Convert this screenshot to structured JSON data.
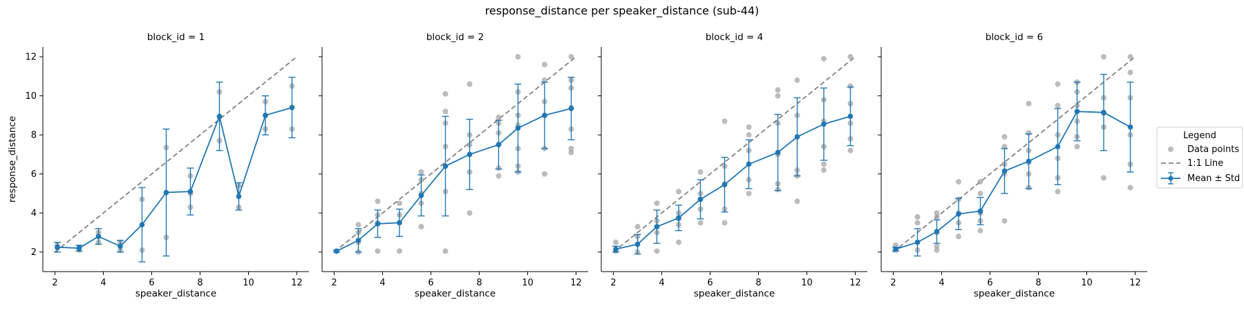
{
  "figure": {
    "title": "response_distance per speaker_distance (sub-44)"
  },
  "legend": {
    "title": "Legend",
    "entries": [
      {
        "label": "Data points",
        "marker": "gray-dot"
      },
      {
        "label": "1:1 Line",
        "marker": "dashed-line"
      },
      {
        "label": "Mean ± Std",
        "marker": "errorbar-line"
      }
    ]
  },
  "colors": {
    "mean": "#1f77b4",
    "points": "#a0a0a0",
    "diagonal": "#808080"
  },
  "chart_data": [
    {
      "type": "scatter",
      "title": "block_id = 1",
      "xlabel": "speaker_distance",
      "ylabel": "response_distance",
      "xlim": [
        1.5,
        12.5
      ],
      "ylim": [
        1.0,
        12.5
      ],
      "xticks": [
        2,
        4,
        6,
        8,
        10,
        12
      ],
      "yticks": [
        2,
        4,
        6,
        8,
        10,
        12
      ],
      "mean": [
        {
          "x": 2.1,
          "y": 2.25,
          "sd": 0.25
        },
        {
          "x": 3.0,
          "y": 2.2,
          "sd": 0.15
        },
        {
          "x": 3.8,
          "y": 2.8,
          "sd": 0.4
        },
        {
          "x": 4.7,
          "y": 2.3,
          "sd": 0.3
        },
        {
          "x": 5.6,
          "y": 3.4,
          "sd": 1.9
        },
        {
          "x": 6.6,
          "y": 5.05,
          "sd": 3.25
        },
        {
          "x": 7.6,
          "y": 5.1,
          "sd": 1.2
        },
        {
          "x": 8.8,
          "y": 8.95,
          "sd": 1.75
        },
        {
          "x": 9.6,
          "y": 4.85,
          "sd": 0.7
        },
        {
          "x": 10.7,
          "y": 9.0,
          "sd": 1.0
        },
        {
          "x": 11.8,
          "y": 9.4,
          "sd": 1.55
        }
      ],
      "points": [
        [
          2.1,
          2.2
        ],
        [
          2.1,
          2.35
        ],
        [
          3.0,
          2.1
        ],
        [
          3.0,
          2.25
        ],
        [
          3.8,
          2.5
        ],
        [
          3.8,
          3.0
        ],
        [
          3.8,
          2.8
        ],
        [
          4.7,
          2.1
        ],
        [
          4.7,
          2.5
        ],
        [
          5.6,
          2.1
        ],
        [
          5.6,
          4.7
        ],
        [
          6.6,
          2.75
        ],
        [
          6.6,
          7.35
        ],
        [
          7.6,
          4.3
        ],
        [
          7.6,
          5.9
        ],
        [
          7.6,
          5.0
        ],
        [
          8.8,
          7.7
        ],
        [
          8.8,
          10.2
        ],
        [
          8.8,
          8.9
        ],
        [
          9.6,
          4.3
        ],
        [
          9.6,
          5.4
        ],
        [
          10.7,
          8.3
        ],
        [
          10.7,
          9.7
        ],
        [
          10.7,
          9.0
        ],
        [
          11.8,
          8.3
        ],
        [
          11.8,
          10.5
        ],
        [
          11.8,
          9.4
        ]
      ]
    },
    {
      "type": "scatter",
      "title": "block_id = 2",
      "xlabel": "speaker_distance",
      "ylabel": "",
      "xlim": [
        1.5,
        12.5
      ],
      "ylim": [
        1.0,
        12.5
      ],
      "xticks": [
        2,
        4,
        6,
        8,
        10,
        12
      ],
      "yticks": [
        2,
        4,
        6,
        8,
        10,
        12
      ],
      "mean": [
        {
          "x": 2.1,
          "y": 2.05,
          "sd": 0.05
        },
        {
          "x": 3.0,
          "y": 2.6,
          "sd": 0.6
        },
        {
          "x": 3.8,
          "y": 3.45,
          "sd": 0.7
        },
        {
          "x": 4.7,
          "y": 3.5,
          "sd": 0.7
        },
        {
          "x": 5.6,
          "y": 4.9,
          "sd": 1.05
        },
        {
          "x": 6.6,
          "y": 6.4,
          "sd": 2.55
        },
        {
          "x": 7.6,
          "y": 7.0,
          "sd": 1.8
        },
        {
          "x": 8.8,
          "y": 7.5,
          "sd": 1.25
        },
        {
          "x": 9.6,
          "y": 8.35,
          "sd": 2.25
        },
        {
          "x": 10.7,
          "y": 9.0,
          "sd": 1.7
        },
        {
          "x": 11.8,
          "y": 9.35,
          "sd": 1.6
        }
      ],
      "points": [
        [
          2.1,
          2.05
        ],
        [
          3.0,
          2.0
        ],
        [
          3.0,
          2.5
        ],
        [
          3.0,
          3.4
        ],
        [
          3.0,
          3.0
        ],
        [
          3.8,
          2.05
        ],
        [
          3.8,
          3.5
        ],
        [
          3.8,
          4.6
        ],
        [
          3.8,
          3.9
        ],
        [
          4.7,
          2.05
        ],
        [
          4.7,
          3.5
        ],
        [
          4.7,
          4.5
        ],
        [
          4.7,
          3.9
        ],
        [
          5.6,
          3.3
        ],
        [
          5.6,
          4.5
        ],
        [
          5.6,
          6.1
        ],
        [
          5.6,
          5.0
        ],
        [
          5.6,
          5.7
        ],
        [
          6.6,
          2.05
        ],
        [
          6.6,
          5.1
        ],
        [
          6.6,
          6.4
        ],
        [
          6.6,
          8.6
        ],
        [
          6.6,
          10.1
        ],
        [
          6.6,
          9.2
        ],
        [
          6.6,
          7.4
        ],
        [
          7.6,
          4.0
        ],
        [
          7.6,
          6.1
        ],
        [
          7.6,
          7.0
        ],
        [
          7.6,
          8.0
        ],
        [
          7.6,
          10.6
        ],
        [
          7.6,
          7.5
        ],
        [
          8.8,
          5.9
        ],
        [
          8.8,
          6.3
        ],
        [
          8.8,
          7.5
        ],
        [
          8.8,
          8.6
        ],
        [
          8.8,
          8.9
        ],
        [
          8.8,
          8.1
        ],
        [
          9.6,
          6.1
        ],
        [
          9.6,
          6.4
        ],
        [
          9.6,
          7.3
        ],
        [
          9.6,
          8.5
        ],
        [
          9.6,
          10.2
        ],
        [
          9.6,
          12.0
        ],
        [
          9.6,
          9.0
        ],
        [
          10.7,
          6.0
        ],
        [
          10.7,
          7.3
        ],
        [
          10.7,
          9.0
        ],
        [
          10.7,
          9.7
        ],
        [
          10.7,
          10.8
        ],
        [
          10.7,
          11.6
        ],
        [
          11.8,
          7.1
        ],
        [
          11.8,
          7.3
        ],
        [
          11.8,
          8.3
        ],
        [
          11.8,
          9.4
        ],
        [
          11.8,
          10.4
        ],
        [
          11.8,
          10.8
        ],
        [
          11.8,
          12.0
        ]
      ]
    },
    {
      "type": "scatter",
      "title": "block_id = 4",
      "xlabel": "speaker_distance",
      "ylabel": "",
      "xlim": [
        1.5,
        12.5
      ],
      "ylim": [
        1.0,
        12.5
      ],
      "xticks": [
        2,
        4,
        6,
        8,
        10,
        12
      ],
      "yticks": [
        2,
        4,
        6,
        8,
        10,
        12
      ],
      "mean": [
        {
          "x": 2.1,
          "y": 2.15,
          "sd": 0.15
        },
        {
          "x": 3.0,
          "y": 2.4,
          "sd": 0.5
        },
        {
          "x": 3.8,
          "y": 3.3,
          "sd": 0.85
        },
        {
          "x": 4.7,
          "y": 3.75,
          "sd": 0.65
        },
        {
          "x": 5.6,
          "y": 4.7,
          "sd": 1.0
        },
        {
          "x": 6.6,
          "y": 5.45,
          "sd": 1.4
        },
        {
          "x": 7.6,
          "y": 6.5,
          "sd": 1.25
        },
        {
          "x": 8.8,
          "y": 7.1,
          "sd": 1.95
        },
        {
          "x": 9.6,
          "y": 7.9,
          "sd": 2.0
        },
        {
          "x": 10.7,
          "y": 8.55,
          "sd": 1.85
        },
        {
          "x": 11.8,
          "y": 8.95,
          "sd": 1.5
        }
      ],
      "points": [
        [
          2.1,
          2.05
        ],
        [
          2.1,
          2.5
        ],
        [
          3.0,
          2.0
        ],
        [
          3.0,
          2.4
        ],
        [
          3.0,
          3.3
        ],
        [
          3.0,
          2.8
        ],
        [
          3.8,
          2.05
        ],
        [
          3.8,
          3.0
        ],
        [
          3.8,
          3.6
        ],
        [
          3.8,
          4.5
        ],
        [
          3.8,
          3.3
        ],
        [
          4.7,
          2.5
        ],
        [
          4.7,
          3.4
        ],
        [
          4.7,
          4.0
        ],
        [
          4.7,
          5.1
        ],
        [
          4.7,
          3.7
        ],
        [
          5.6,
          3.5
        ],
        [
          5.6,
          4.2
        ],
        [
          5.6,
          5.0
        ],
        [
          5.6,
          6.1
        ],
        [
          5.6,
          4.7
        ],
        [
          6.6,
          3.5
        ],
        [
          6.6,
          4.2
        ],
        [
          6.6,
          5.5
        ],
        [
          6.6,
          6.4
        ],
        [
          6.6,
          8.7
        ],
        [
          7.6,
          5.0
        ],
        [
          7.6,
          5.7
        ],
        [
          7.6,
          6.5
        ],
        [
          7.6,
          7.2
        ],
        [
          7.6,
          8.0
        ],
        [
          7.6,
          8.4
        ],
        [
          8.8,
          5.2
        ],
        [
          8.8,
          5.5
        ],
        [
          8.8,
          7.0
        ],
        [
          8.8,
          8.6
        ],
        [
          8.8,
          10.0
        ],
        [
          8.8,
          10.3
        ],
        [
          9.6,
          4.6
        ],
        [
          9.6,
          5.9
        ],
        [
          9.6,
          6.2
        ],
        [
          9.6,
          7.9
        ],
        [
          9.6,
          9.0
        ],
        [
          9.6,
          10.8
        ],
        [
          10.7,
          6.2
        ],
        [
          10.7,
          6.5
        ],
        [
          10.7,
          7.4
        ],
        [
          10.7,
          8.7
        ],
        [
          10.7,
          9.8
        ],
        [
          10.7,
          11.9
        ],
        [
          11.8,
          7.2
        ],
        [
          11.8,
          7.8
        ],
        [
          11.8,
          8.6
        ],
        [
          11.8,
          9.6
        ],
        [
          11.8,
          10.5
        ],
        [
          11.8,
          12.0
        ]
      ]
    },
    {
      "type": "scatter",
      "title": "block_id = 6",
      "xlabel": "speaker_distance",
      "ylabel": "",
      "xlim": [
        1.5,
        12.5
      ],
      "ylim": [
        1.0,
        12.5
      ],
      "xticks": [
        2,
        4,
        6,
        8,
        10,
        12
      ],
      "yticks": [
        2,
        4,
        6,
        8,
        10,
        12
      ],
      "mean": [
        {
          "x": 2.1,
          "y": 2.15,
          "sd": 0.1
        },
        {
          "x": 3.0,
          "y": 2.5,
          "sd": 0.7
        },
        {
          "x": 3.8,
          "y": 3.05,
          "sd": 0.6
        },
        {
          "x": 4.7,
          "y": 3.95,
          "sd": 0.8
        },
        {
          "x": 5.6,
          "y": 4.1,
          "sd": 0.7
        },
        {
          "x": 6.6,
          "y": 6.15,
          "sd": 1.15
        },
        {
          "x": 7.6,
          "y": 6.65,
          "sd": 1.4
        },
        {
          "x": 8.8,
          "y": 7.4,
          "sd": 1.95
        },
        {
          "x": 9.6,
          "y": 9.2,
          "sd": 1.5
        },
        {
          "x": 10.7,
          "y": 9.15,
          "sd": 1.95
        },
        {
          "x": 11.8,
          "y": 8.4,
          "sd": 2.3
        }
      ],
      "points": [
        [
          2.1,
          2.1
        ],
        [
          2.1,
          2.35
        ],
        [
          3.0,
          2.1
        ],
        [
          3.0,
          2.5
        ],
        [
          3.0,
          3.5
        ],
        [
          3.0,
          3.8
        ],
        [
          3.8,
          2.1
        ],
        [
          3.8,
          2.3
        ],
        [
          3.8,
          3.0
        ],
        [
          3.8,
          3.8
        ],
        [
          3.8,
          4.0
        ],
        [
          4.7,
          2.8
        ],
        [
          4.7,
          3.5
        ],
        [
          4.7,
          4.0
        ],
        [
          4.7,
          4.7
        ],
        [
          4.7,
          5.6
        ],
        [
          5.6,
          3.1
        ],
        [
          5.6,
          3.6
        ],
        [
          5.6,
          4.0
        ],
        [
          5.6,
          5.0
        ],
        [
          5.6,
          5.6
        ],
        [
          6.6,
          3.6
        ],
        [
          6.6,
          6.0
        ],
        [
          6.6,
          6.5
        ],
        [
          6.6,
          7.4
        ],
        [
          6.6,
          7.9
        ],
        [
          7.6,
          5.3
        ],
        [
          7.6,
          6.0
        ],
        [
          7.6,
          6.6
        ],
        [
          7.6,
          7.2
        ],
        [
          7.6,
          8.1
        ],
        [
          7.6,
          9.6
        ],
        [
          8.8,
          5.1
        ],
        [
          8.8,
          5.8
        ],
        [
          8.8,
          6.8
        ],
        [
          8.8,
          8.0
        ],
        [
          8.8,
          9.5
        ],
        [
          8.8,
          10.6
        ],
        [
          9.6,
          7.4
        ],
        [
          9.6,
          7.9
        ],
        [
          9.6,
          8.7
        ],
        [
          9.6,
          9.5
        ],
        [
          9.6,
          10.2
        ],
        [
          9.6,
          10.7
        ],
        [
          10.7,
          5.8
        ],
        [
          10.7,
          8.4
        ],
        [
          10.7,
          9.1
        ],
        [
          10.7,
          9.9
        ],
        [
          10.7,
          12.0
        ],
        [
          11.8,
          5.3
        ],
        [
          11.8,
          6.5
        ],
        [
          11.8,
          8.0
        ],
        [
          11.8,
          9.9
        ],
        [
          11.8,
          11.2
        ],
        [
          11.8,
          12.0
        ]
      ]
    }
  ]
}
